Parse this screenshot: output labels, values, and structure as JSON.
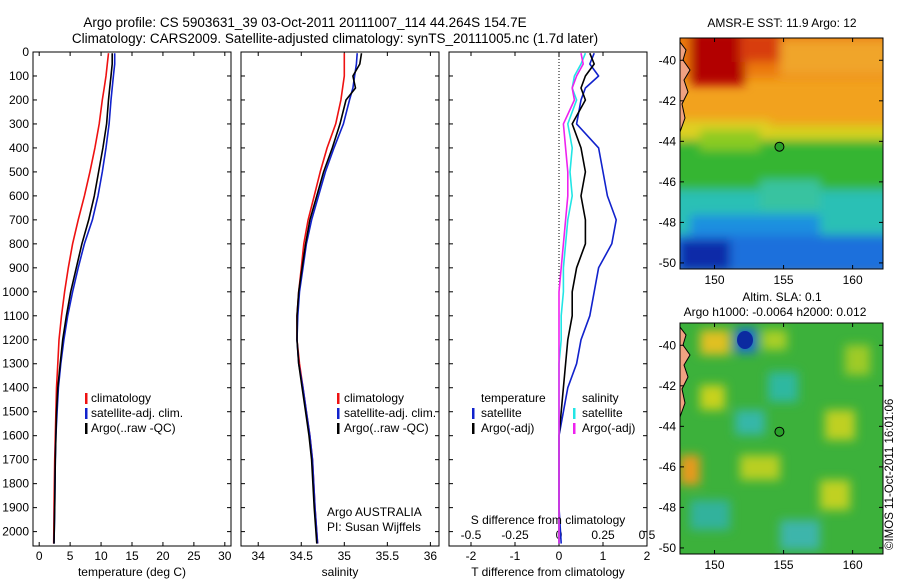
{
  "header": {
    "line1": "Argo profile: CS 5903631_39 03-Oct-2011 20111007_114 44.264S 154.7E",
    "line2": "Climatology: CARS2009. Satellite-adjusted climatology: synTS_20111005.nc (1.7d later)"
  },
  "footer": {
    "credit": "©IMOS 11-Oct-2011 16:01:06"
  },
  "colors": {
    "climatology": "#ee1111",
    "satellite": "#1122cc",
    "argo": "#000000",
    "sal_satellite": "#22e5e5",
    "sal_argo": "#ee22ee"
  },
  "chart_data": [
    {
      "type": "line",
      "panel": "temperature",
      "xlabel": "temperature (deg C)",
      "ylabel": "",
      "xlim": [
        -1,
        31
      ],
      "ylim": [
        2060,
        0
      ],
      "xticks": [
        "0",
        "5",
        "10",
        "15",
        "20",
        "25",
        "30"
      ],
      "yticks": [
        "0",
        "100",
        "200",
        "300",
        "400",
        "500",
        "600",
        "700",
        "800",
        "900",
        "1000",
        "1100",
        "1200",
        "1300",
        "1400",
        "1500",
        "1600",
        "1700",
        "1800",
        "1900",
        "2000"
      ],
      "legend": [
        "climatology",
        "satellite-adj. clim.",
        "Argo(..raw -QC)"
      ],
      "series": [
        {
          "name": "climatology",
          "color": "#ee1111",
          "x": [
            11.2,
            11.0,
            10.8,
            10.5,
            10.2,
            9.7,
            9.0,
            8.2,
            7.3,
            6.3,
            5.4,
            4.7,
            4.1,
            3.6,
            3.2,
            3.0,
            2.8,
            2.7,
            2.6,
            2.5,
            2.4,
            2.35
          ],
          "y": [
            5,
            50,
            100,
            150,
            200,
            300,
            400,
            500,
            600,
            700,
            800,
            900,
            1000,
            1100,
            1200,
            1300,
            1400,
            1500,
            1600,
            1700,
            1900,
            2050
          ]
        },
        {
          "name": "satellite-adj. clim.",
          "color": "#1122cc",
          "x": [
            12.2,
            12.2,
            12.0,
            11.8,
            11.6,
            11.3,
            10.8,
            10.2,
            9.5,
            8.6,
            7.3,
            6.3,
            5.4,
            4.6,
            4.0,
            3.5,
            3.1,
            2.9,
            2.7,
            2.6,
            2.5,
            2.4
          ],
          "y": [
            5,
            50,
            100,
            150,
            200,
            300,
            400,
            500,
            600,
            700,
            800,
            900,
            1000,
            1100,
            1200,
            1300,
            1400,
            1500,
            1600,
            1700,
            1900,
            2050
          ]
        },
        {
          "name": "Argo(..raw -QC)",
          "color": "#000000",
          "x": [
            11.8,
            11.8,
            11.6,
            11.4,
            11.2,
            10.9,
            10.3,
            9.6,
            8.9,
            8.0,
            6.9,
            6.0,
            5.1,
            4.4,
            3.8,
            3.4,
            3.0,
            2.8,
            2.7,
            2.6,
            2.5,
            2.4
          ],
          "y": [
            5,
            50,
            100,
            150,
            200,
            300,
            400,
            500,
            600,
            700,
            800,
            900,
            1000,
            1100,
            1200,
            1300,
            1400,
            1500,
            1600,
            1700,
            1900,
            2050
          ]
        }
      ]
    },
    {
      "type": "line",
      "panel": "salinity",
      "xlabel": "salinity",
      "xlim": [
        33.8,
        36.1
      ],
      "ylim": [
        2060,
        0
      ],
      "xticks": [
        "34",
        "34.5",
        "35",
        "35.5",
        "36"
      ],
      "legend": [
        "climatology",
        "satellite-adj. clim.",
        "Argo(..raw -QC)"
      ],
      "annotation": [
        "Argo AUSTRALIA",
        "PI: Susan Wijffels"
      ],
      "series": [
        {
          "name": "climatology",
          "color": "#ee1111",
          "x": [
            35.0,
            35.0,
            35.0,
            34.98,
            34.96,
            34.9,
            34.8,
            34.72,
            34.65,
            34.58,
            34.53,
            34.5,
            34.47,
            34.45,
            34.45,
            34.48,
            34.52,
            34.56,
            34.6,
            34.63,
            34.66,
            34.69
          ],
          "y": [
            5,
            50,
            100,
            150,
            200,
            300,
            400,
            500,
            600,
            700,
            800,
            900,
            1000,
            1100,
            1200,
            1300,
            1400,
            1500,
            1600,
            1700,
            1900,
            2050
          ]
        },
        {
          "name": "satellite-adj. clim.",
          "color": "#1122cc",
          "x": [
            35.15,
            35.14,
            35.12,
            35.1,
            35.06,
            34.99,
            34.88,
            34.78,
            34.7,
            34.62,
            34.56,
            34.52,
            34.48,
            34.46,
            34.45,
            34.47,
            34.52,
            34.56,
            34.6,
            34.63,
            34.66,
            34.69
          ],
          "y": [
            5,
            50,
            100,
            150,
            200,
            300,
            400,
            500,
            600,
            700,
            800,
            900,
            1000,
            1100,
            1200,
            1300,
            1400,
            1500,
            1600,
            1700,
            1900,
            2050
          ]
        },
        {
          "name": "Argo(..raw -QC)",
          "color": "#000000",
          "x": [
            35.2,
            35.18,
            35.1,
            35.13,
            35.02,
            34.95,
            34.86,
            34.76,
            34.68,
            34.6,
            34.55,
            34.51,
            34.47,
            34.45,
            34.45,
            34.47,
            34.51,
            34.55,
            34.59,
            34.62,
            34.65,
            34.68
          ],
          "y": [
            5,
            50,
            100,
            150,
            200,
            300,
            400,
            500,
            600,
            700,
            800,
            900,
            1000,
            1100,
            1200,
            1300,
            1400,
            1500,
            1600,
            1700,
            1900,
            2050
          ]
        }
      ]
    },
    {
      "type": "line",
      "panel": "difference",
      "xlabel": "T difference from climatology",
      "xlabel2": "S difference from climatology",
      "xlim": [
        -2.5,
        2.0
      ],
      "ylim": [
        2060,
        0
      ],
      "xticks": [
        "-2",
        "-1",
        "0",
        "1",
        "2"
      ],
      "xticks2": [
        "-0.5",
        "-0.25",
        "0",
        "0.25",
        "0.5"
      ],
      "legend_temperature": [
        "temperature",
        "satellite",
        "Argo(-adj)"
      ],
      "legend_salinity": [
        "salinity",
        "satellite",
        "Argo(-adj)"
      ],
      "series": [
        {
          "name": "temperature satellite",
          "color": "#1122cc",
          "x": [
            0.8,
            0.7,
            0.9,
            0.6,
            0.5,
            0.4,
            0.9,
            1.0,
            1.1,
            1.3,
            1.2,
            0.9,
            0.8,
            0.7,
            0.5,
            0.4,
            0.2,
            0.1,
            0.0,
            0.0,
            0.0,
            0.05
          ],
          "y": [
            5,
            50,
            100,
            150,
            200,
            300,
            400,
            500,
            600,
            700,
            800,
            900,
            1000,
            1100,
            1200,
            1300,
            1400,
            1500,
            1600,
            1700,
            1900,
            2050
          ]
        },
        {
          "name": "temperature Argo(-adj)",
          "color": "#000000",
          "x": [
            0.7,
            0.8,
            0.6,
            0.5,
            0.6,
            0.3,
            0.5,
            0.6,
            0.5,
            0.6,
            0.6,
            0.4,
            0.3,
            0.3,
            0.2,
            0.15,
            0.1,
            0.05,
            0.0,
            0.0,
            0.0,
            0.0
          ],
          "y": [
            5,
            50,
            100,
            150,
            200,
            300,
            400,
            500,
            600,
            700,
            800,
            900,
            1000,
            1100,
            1200,
            1300,
            1400,
            1500,
            1600,
            1700,
            1900,
            2050
          ]
        },
        {
          "name": "salinity satellite",
          "color": "#22e5e5",
          "x": [
            0.6,
            0.5,
            0.35,
            0.3,
            0.4,
            0.2,
            0.3,
            0.25,
            0.3,
            0.2,
            0.15,
            0.1,
            0.1,
            0.05,
            0.05,
            0.0,
            0.0,
            0.0,
            0.0,
            0.0,
            0.0,
            0.0
          ],
          "y": [
            5,
            50,
            100,
            150,
            200,
            300,
            400,
            500,
            600,
            700,
            800,
            900,
            1000,
            1100,
            1200,
            1300,
            1400,
            1500,
            1600,
            1700,
            1900,
            2050
          ]
        },
        {
          "name": "salinity Argo(-adj)",
          "color": "#ee22ee",
          "x": [
            0.5,
            0.55,
            0.4,
            0.3,
            0.35,
            0.1,
            0.15,
            0.2,
            0.2,
            0.15,
            0.1,
            0.05,
            0.0,
            0.0,
            0.0,
            0.0,
            0.0,
            0.0,
            0.0,
            0.0,
            0.0,
            0.0
          ],
          "y": [
            5,
            50,
            100,
            150,
            200,
            300,
            400,
            500,
            600,
            700,
            800,
            900,
            1000,
            1100,
            1200,
            1300,
            1400,
            1500,
            1600,
            1700,
            1900,
            2050
          ]
        }
      ]
    },
    {
      "type": "heatmap",
      "panel": "sst_map",
      "title": "AMSR-E SST: 11.9 Argo: 12",
      "xticks": [
        "150",
        "155",
        "160"
      ],
      "yticks": [
        "-40",
        "-42",
        "-44",
        "-46",
        "-48",
        "-50"
      ],
      "xlim": [
        147.5,
        162.2
      ],
      "ylim": [
        -50.3,
        -38.9
      ],
      "argo_position": {
        "lon": 154.7,
        "lat": -44.264
      }
    },
    {
      "type": "heatmap",
      "panel": "sla_map",
      "title": "Altim. SLA: 0.1",
      "subtitle": "Argo h1000: -0.0064 h2000: 0.012",
      "xticks": [
        "150",
        "155",
        "160"
      ],
      "yticks": [
        "-40",
        "-42",
        "-44",
        "-46",
        "-48",
        "-50"
      ],
      "xlim": [
        147.5,
        162.2
      ],
      "ylim": [
        -50.3,
        -38.9
      ],
      "argo_position": {
        "lon": 154.7,
        "lat": -44.264
      }
    }
  ]
}
